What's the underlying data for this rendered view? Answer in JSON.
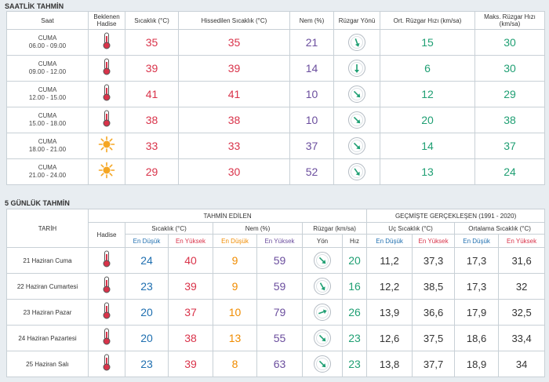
{
  "hourly": {
    "title": "SAATLİK TAHMİN",
    "headers": {
      "saat": "Saat",
      "hadise": [
        "Beklenen",
        "Hadise"
      ],
      "sicaklik": "Sıcaklık (°C)",
      "hissedilen": "Hissedilen Sıcaklık (°C)",
      "nem": "Nem (%)",
      "ruzgar_yonu": "Rüzgar Yönü",
      "ort_ruzgar": "Ort. Rüzgar Hızı (km/sa)",
      "maks_ruzgar": "Maks. Rüzgar Hızı (km/sa)"
    },
    "rows": [
      {
        "day": "CUMA",
        "time": "06.00 - 09.00",
        "icon": "thermometer-icon",
        "temp": "35",
        "feels": "35",
        "humidity": "21",
        "wind_deg": 160,
        "avg_wind": "15",
        "max_wind": "30"
      },
      {
        "day": "CUMA",
        "time": "09.00 - 12.00",
        "icon": "thermometer-icon",
        "temp": "39",
        "feels": "39",
        "humidity": "14",
        "wind_deg": 180,
        "avg_wind": "6",
        "max_wind": "30"
      },
      {
        "day": "CUMA",
        "time": "12.00 - 15.00",
        "icon": "thermometer-icon",
        "temp": "41",
        "feels": "41",
        "humidity": "10",
        "wind_deg": 135,
        "avg_wind": "12",
        "max_wind": "29"
      },
      {
        "day": "CUMA",
        "time": "15.00 - 18.00",
        "icon": "thermometer-icon",
        "temp": "38",
        "feels": "38",
        "humidity": "10",
        "wind_deg": 135,
        "avg_wind": "20",
        "max_wind": "38"
      },
      {
        "day": "CUMA",
        "time": "18.00 - 21.00",
        "icon": "sun-icon",
        "temp": "33",
        "feels": "33",
        "humidity": "37",
        "wind_deg": 135,
        "avg_wind": "14",
        "max_wind": "37"
      },
      {
        "day": "CUMA",
        "time": "21.00 - 24.00",
        "icon": "sun-icon",
        "temp": "29",
        "feels": "30",
        "humidity": "52",
        "wind_deg": 145,
        "avg_wind": "13",
        "max_wind": "24"
      }
    ]
  },
  "daily": {
    "title": "5 GÜNLÜK TAHMİN",
    "headers": {
      "tarih": "TARİH",
      "tahmin": "TAHMİN EDİLEN",
      "gecmis": "GEÇMİŞTE GERÇEKLEŞEN (1991 - 2020)",
      "hadise": "Hadise",
      "sicaklik": "Sıcaklık (°C)",
      "nem": "Nem (%)",
      "ruzgar": "Rüzgar (km/sa)",
      "uc_sicaklik": "Uç Sıcaklık (°C)",
      "ort_sicaklik": "Ortalama Sıcaklık (°C)",
      "en_dusuk": "En Düşük",
      "en_yuksek": "En Yüksek",
      "yon": "Yön",
      "hiz": "Hız"
    },
    "rows": [
      {
        "date": "21 Haziran Cuma",
        "icon": "thermometer-icon",
        "t_min": "24",
        "t_max": "40",
        "h_min": "9",
        "h_max": "59",
        "wind_deg": 135,
        "wind_speed": "20",
        "ext_min": "11,2",
        "ext_max": "37,3",
        "avg_min": "17,3",
        "avg_max": "31,6"
      },
      {
        "date": "22 Haziran Cumartesi",
        "icon": "thermometer-icon",
        "t_min": "23",
        "t_max": "39",
        "h_min": "9",
        "h_max": "59",
        "wind_deg": 150,
        "wind_speed": "16",
        "ext_min": "12,2",
        "ext_max": "38,5",
        "avg_min": "17,3",
        "avg_max": "32"
      },
      {
        "date": "23 Haziran Pazar",
        "icon": "thermometer-icon",
        "t_min": "20",
        "t_max": "37",
        "h_min": "10",
        "h_max": "79",
        "wind_deg": 70,
        "wind_speed": "26",
        "ext_min": "13,9",
        "ext_max": "36,6",
        "avg_min": "17,9",
        "avg_max": "32,5"
      },
      {
        "date": "24 Haziran Pazartesi",
        "icon": "thermometer-icon",
        "t_min": "20",
        "t_max": "38",
        "h_min": "13",
        "h_max": "55",
        "wind_deg": 135,
        "wind_speed": "23",
        "ext_min": "12,6",
        "ext_max": "37,5",
        "avg_min": "18,6",
        "avg_max": "33,4"
      },
      {
        "date": "25 Haziran Salı",
        "icon": "thermometer-icon",
        "t_min": "23",
        "t_max": "39",
        "h_min": "8",
        "h_max": "63",
        "wind_deg": 135,
        "wind_speed": "23",
        "ext_min": "13,8",
        "ext_max": "37,7",
        "avg_min": "18,9",
        "avg_max": "34"
      }
    ]
  },
  "colors": {
    "temp": "#d9334a",
    "humidity": "#6b4e9e",
    "wind": "#1f9f73",
    "low": "#1f6fb0",
    "humidity_low": "#f08c00",
    "wind_arrow": "#1f9f73"
  }
}
